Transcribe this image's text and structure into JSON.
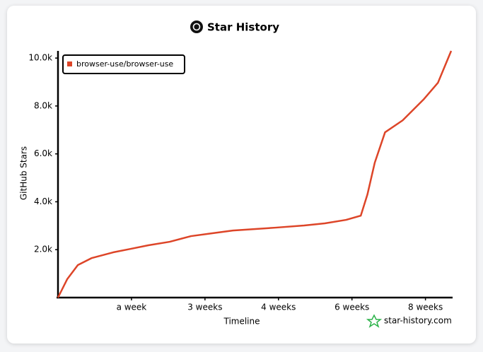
{
  "chart_data": {
    "type": "line",
    "title": "Star History",
    "x_label": "Timeline",
    "y_label": "GitHub Stars",
    "watermark": "star-history.com",
    "x": [
      0,
      1.25,
      2.7,
      4.6,
      7.5,
      9.9,
      12.3,
      15.2,
      18.1,
      21,
      23.8,
      26.7,
      29.6,
      33.5,
      36.3,
      39.2,
      41.2,
      42.1,
      43.1,
      44.5,
      46.9,
      49.8,
      51.7,
      53.5
    ],
    "series": [
      {
        "name": "browser-use/browser-use",
        "color": "#dd4528",
        "values": [
          0,
          767,
          1357,
          1652,
          1888,
          2035,
          2183,
          2330,
          2566,
          2685,
          2800,
          2860,
          2920,
          3010,
          3100,
          3245,
          3420,
          4300,
          5630,
          6900,
          7400,
          8290,
          8970,
          10300
        ]
      }
    ],
    "xlim": [
      0,
      53.5
    ],
    "xticks": [
      {
        "value": 10,
        "label": "a week"
      },
      {
        "value": 20,
        "label": "3 weeks"
      },
      {
        "value": 30,
        "label": "4 weeks"
      },
      {
        "value": 40,
        "label": "6 weeks"
      },
      {
        "value": 50,
        "label": "8 weeks"
      }
    ],
    "ylim": [
      0,
      10300
    ],
    "yticks": [
      {
        "value": 2000,
        "label": "2.0k"
      },
      {
        "value": 4000,
        "label": "4.0k"
      },
      {
        "value": 6000,
        "label": "6.0k"
      },
      {
        "value": 8000,
        "label": "8.0k"
      },
      {
        "value": 10000,
        "label": "10.0k"
      }
    ],
    "legend": "top-left"
  }
}
